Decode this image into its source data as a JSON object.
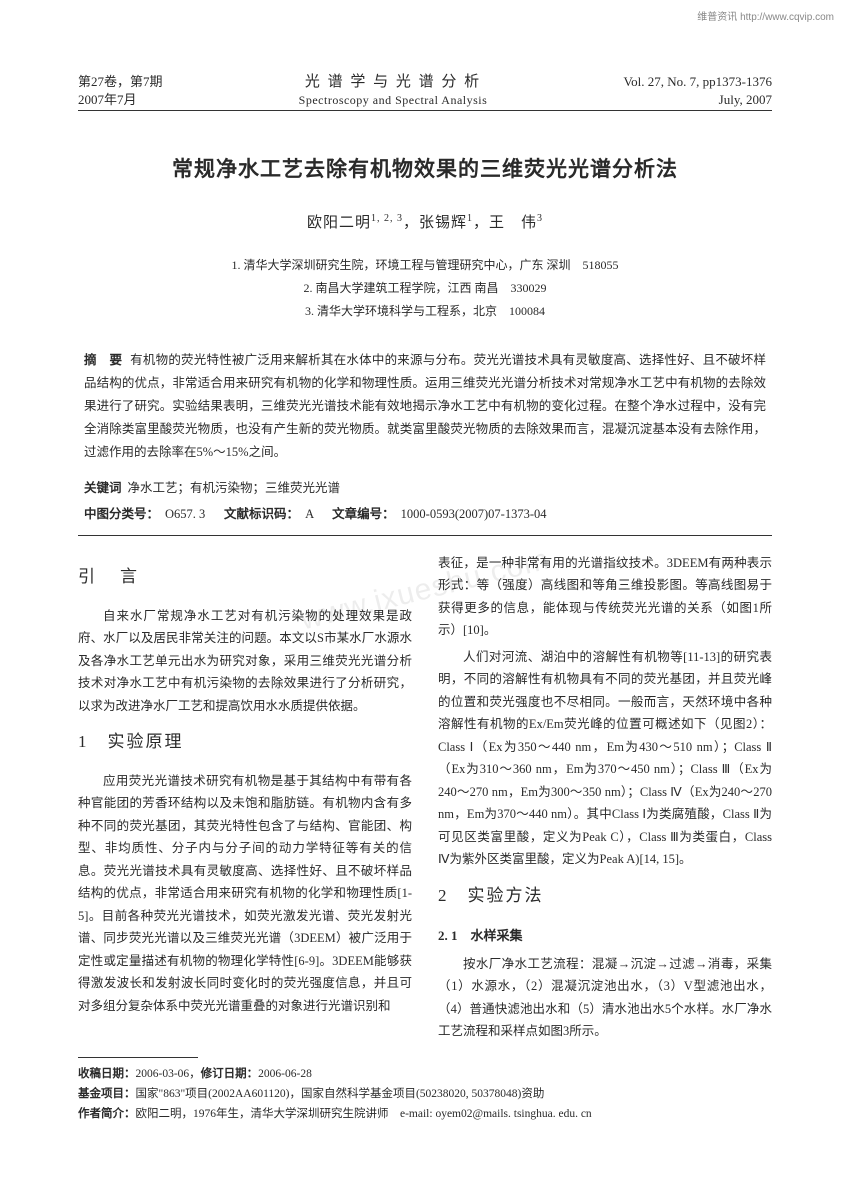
{
  "watermark_top": "维普资讯 http://www.cqvip.com",
  "watermark_center": "www.ixueshu.com",
  "header": {
    "left_line1": "第27卷，第7期",
    "left_line2": "2007年7月",
    "center_cn": "光 谱 学 与 光 谱 分 析",
    "center_en": "Spectroscopy and Spectral Analysis",
    "right_line1": "Vol. 27, No. 7, pp1373-1376",
    "right_line2": "July, 2007"
  },
  "title": "常规净水工艺去除有机物效果的三维荧光光谱分析法",
  "authors_html": "欧阳二明<sup>1, 2, 3</sup>，张锡辉<sup>1</sup>，王　伟<sup>3</sup>",
  "affiliations": [
    "1. 清华大学深圳研究生院，环境工程与管理研究中心，广东 深圳　518055",
    "2. 南昌大学建筑工程学院，江西 南昌　330029",
    "3. 清华大学环境科学与工程系，北京　100084"
  ],
  "abstract_label": "摘　要",
  "abstract": "有机物的荧光特性被广泛用来解析其在水体中的来源与分布。荧光光谱技术具有灵敏度高、选择性好、且不破坏样品结构的优点，非常适合用来研究有机物的化学和物理性质。运用三维荧光光谱分析技术对常规净水工艺中有机物的去除效果进行了研究。实验结果表明，三维荧光光谱技术能有效地揭示净水工艺中有机物的变化过程。在整个净水过程中，没有完全消除类富里酸荧光物质，也没有产生新的荧光物质。就类富里酸荧光物质的去除效果而言，混凝沉淀基本没有去除作用，过滤作用的去除率在5%～15%之间。",
  "keywords_label": "关键词",
  "keywords": "净水工艺；有机污染物；三维荧光光谱",
  "class_label1": "中图分类号：",
  "class_val1": "O657. 3",
  "class_label2": "文献标识码：",
  "class_val2": "A",
  "class_label3": "文章编号：",
  "class_val3": "1000-0593(2007)07-1373-04",
  "sec_intro": "引　言",
  "intro_p1": "自来水厂常规净水工艺对有机污染物的处理效果是政府、水厂以及居民非常关注的问题。本文以S市某水厂水源水及各净水工艺单元出水为研究对象，采用三维荧光光谱分析技术对净水工艺中有机污染物的去除效果进行了分析研究，以求为改进净水厂工艺和提高饮用水水质提供依据。",
  "sec1": "1　实验原理",
  "s1_p1": "应用荧光光谱技术研究有机物是基于其结构中有带有各种官能团的芳香环结构以及未饱和脂肪链。有机物内含有多种不同的荧光基团，其荧光特性包含了与结构、官能团、构型、非均质性、分子内与分子间的动力学特征等有关的信息。荧光光谱技术具有灵敏度高、选择性好、且不破坏样品结构的优点，非常适合用来研究有机物的化学和物理性质[1-5]。目前各种荧光光谱技术，如荧光激发光谱、荧光发射光谱、同步荧光光谱以及三维荧光光谱（3DEEM）被广泛用于定性或定量描述有机物的物理化学特性[6-9]。3DEEM能够获得激发波长和发射波长同时变化时的荧光强度信息，并且可对多组分复杂体系中荧光光谱重叠的对象进行光谱识别和",
  "r_p1": "表征，是一种非常有用的光谱指纹技术。3DEEM有两种表示形式：等（强度）高线图和等角三维投影图。等高线图易于获得更多的信息，能体现与传统荧光光谱的关系（如图1所示）[10]。",
  "r_p2": "人们对河流、湖泊中的溶解性有机物等[11-13]的研究表明，不同的溶解性有机物具有不同的荧光基团，并且荧光峰的位置和荧光强度也不尽相同。一般而言，天然环境中各种溶解性有机物的Ex/Em荧光峰的位置可概述如下（见图2）：Class Ⅰ（Ex为350～440 nm，Em为430～510 nm）；Class Ⅱ（Ex为310～360 nm，Em为370～450 nm）；Class Ⅲ（Ex为240～270 nm，Em为300～350 nm）；Class Ⅳ（Ex为240～270 nm，Em为370～440 nm）。其中Class Ⅰ为类腐殖酸，Class Ⅱ为可见区类富里酸，定义为Peak C），Class Ⅲ为类蛋白，Class Ⅳ为紫外区类富里酸，定义为Peak A)[14, 15]。",
  "sec2": "2　实验方法",
  "sec2_1": "2. 1　水样采集",
  "s2_p1": "按水厂净水工艺流程：混凝→沉淀→过滤→消毒，采集（1）水源水，（2）混凝沉淀池出水，（3）V型滤池出水，（4）普通快滤池出水和（5）清水池出水5个水样。水厂净水工艺流程和采样点如图3所示。",
  "footer": {
    "recv_label": "收稿日期：",
    "recv": "2006-03-06，",
    "rev_label": "修订日期：",
    "rev": "2006-06-28",
    "fund_label": "基金项目：",
    "fund": "国家\"863\"项目(2002AA601120)，国家自然科学基金项目(50238020, 50378048)资助",
    "bio_label": "作者简介：",
    "bio": "欧阳二明，1976年生，清华大学深圳研究生院讲师　e-mail: oyem02@mails. tsinghua. edu. cn"
  }
}
